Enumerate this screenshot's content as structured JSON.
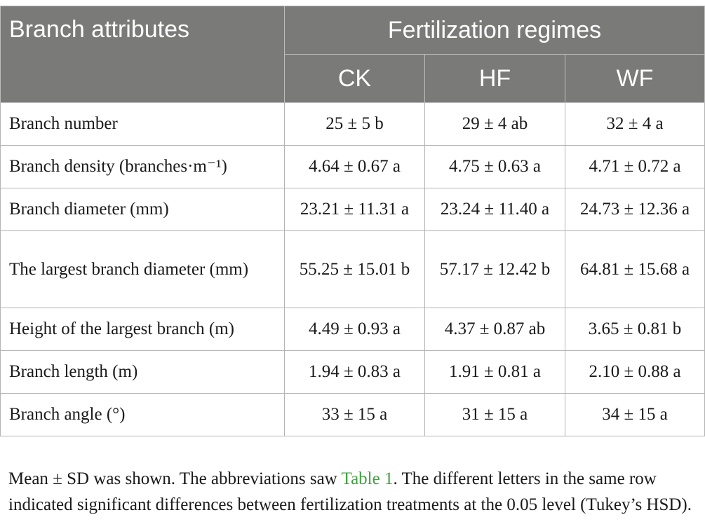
{
  "table": {
    "header": {
      "attribute_label": "Branch attributes",
      "group_label": "Fertilization regimes",
      "treatments": [
        "CK",
        "HF",
        "WF"
      ]
    },
    "rows": [
      {
        "attribute": "Branch number",
        "values": [
          "25 ± 5 b",
          "29 ± 4 ab",
          "32 ± 4 a"
        ]
      },
      {
        "attribute": "Branch density (branches·m⁻¹)",
        "values": [
          "4.64 ± 0.67 a",
          "4.75 ± 0.63 a",
          "4.71 ± 0.72 a"
        ]
      },
      {
        "attribute": "Branch diameter (mm)",
        "values": [
          "23.21 ± 11.31 a",
          "23.24 ± 11.40 a",
          "24.73 ± 12.36 a"
        ]
      },
      {
        "attribute": "The largest branch diameter (mm)",
        "values": [
          "55.25 ± 15.01 b",
          "57.17 ± 12.42 b",
          "64.81 ± 15.68 a"
        ]
      },
      {
        "attribute": "Height of the largest branch (m)",
        "values": [
          "4.49 ± 0.93 a",
          "4.37 ± 0.87 ab",
          "3.65 ± 0.81 b"
        ]
      },
      {
        "attribute": "Branch length (m)",
        "values": [
          "1.94 ± 0.83 a",
          "1.91 ± 0.81 a",
          "2.10 ± 0.88 a"
        ]
      },
      {
        "attribute": "Branch angle (°)",
        "values": [
          "33 ± 15 a",
          "31 ± 15 a",
          "34 ± 15 a"
        ]
      }
    ]
  },
  "footnote": {
    "before_link": "Mean ± SD was shown. The abbreviations saw ",
    "link_text": "Table 1",
    "after_link": ". The different letters in the same row indicated significant differences between fertilization treatments at the 0.05 level (Tukey’s HSD)."
  },
  "colors": {
    "header_bg": "#7a7a78",
    "header_text": "#ffffff",
    "link": "#3ea33e"
  }
}
